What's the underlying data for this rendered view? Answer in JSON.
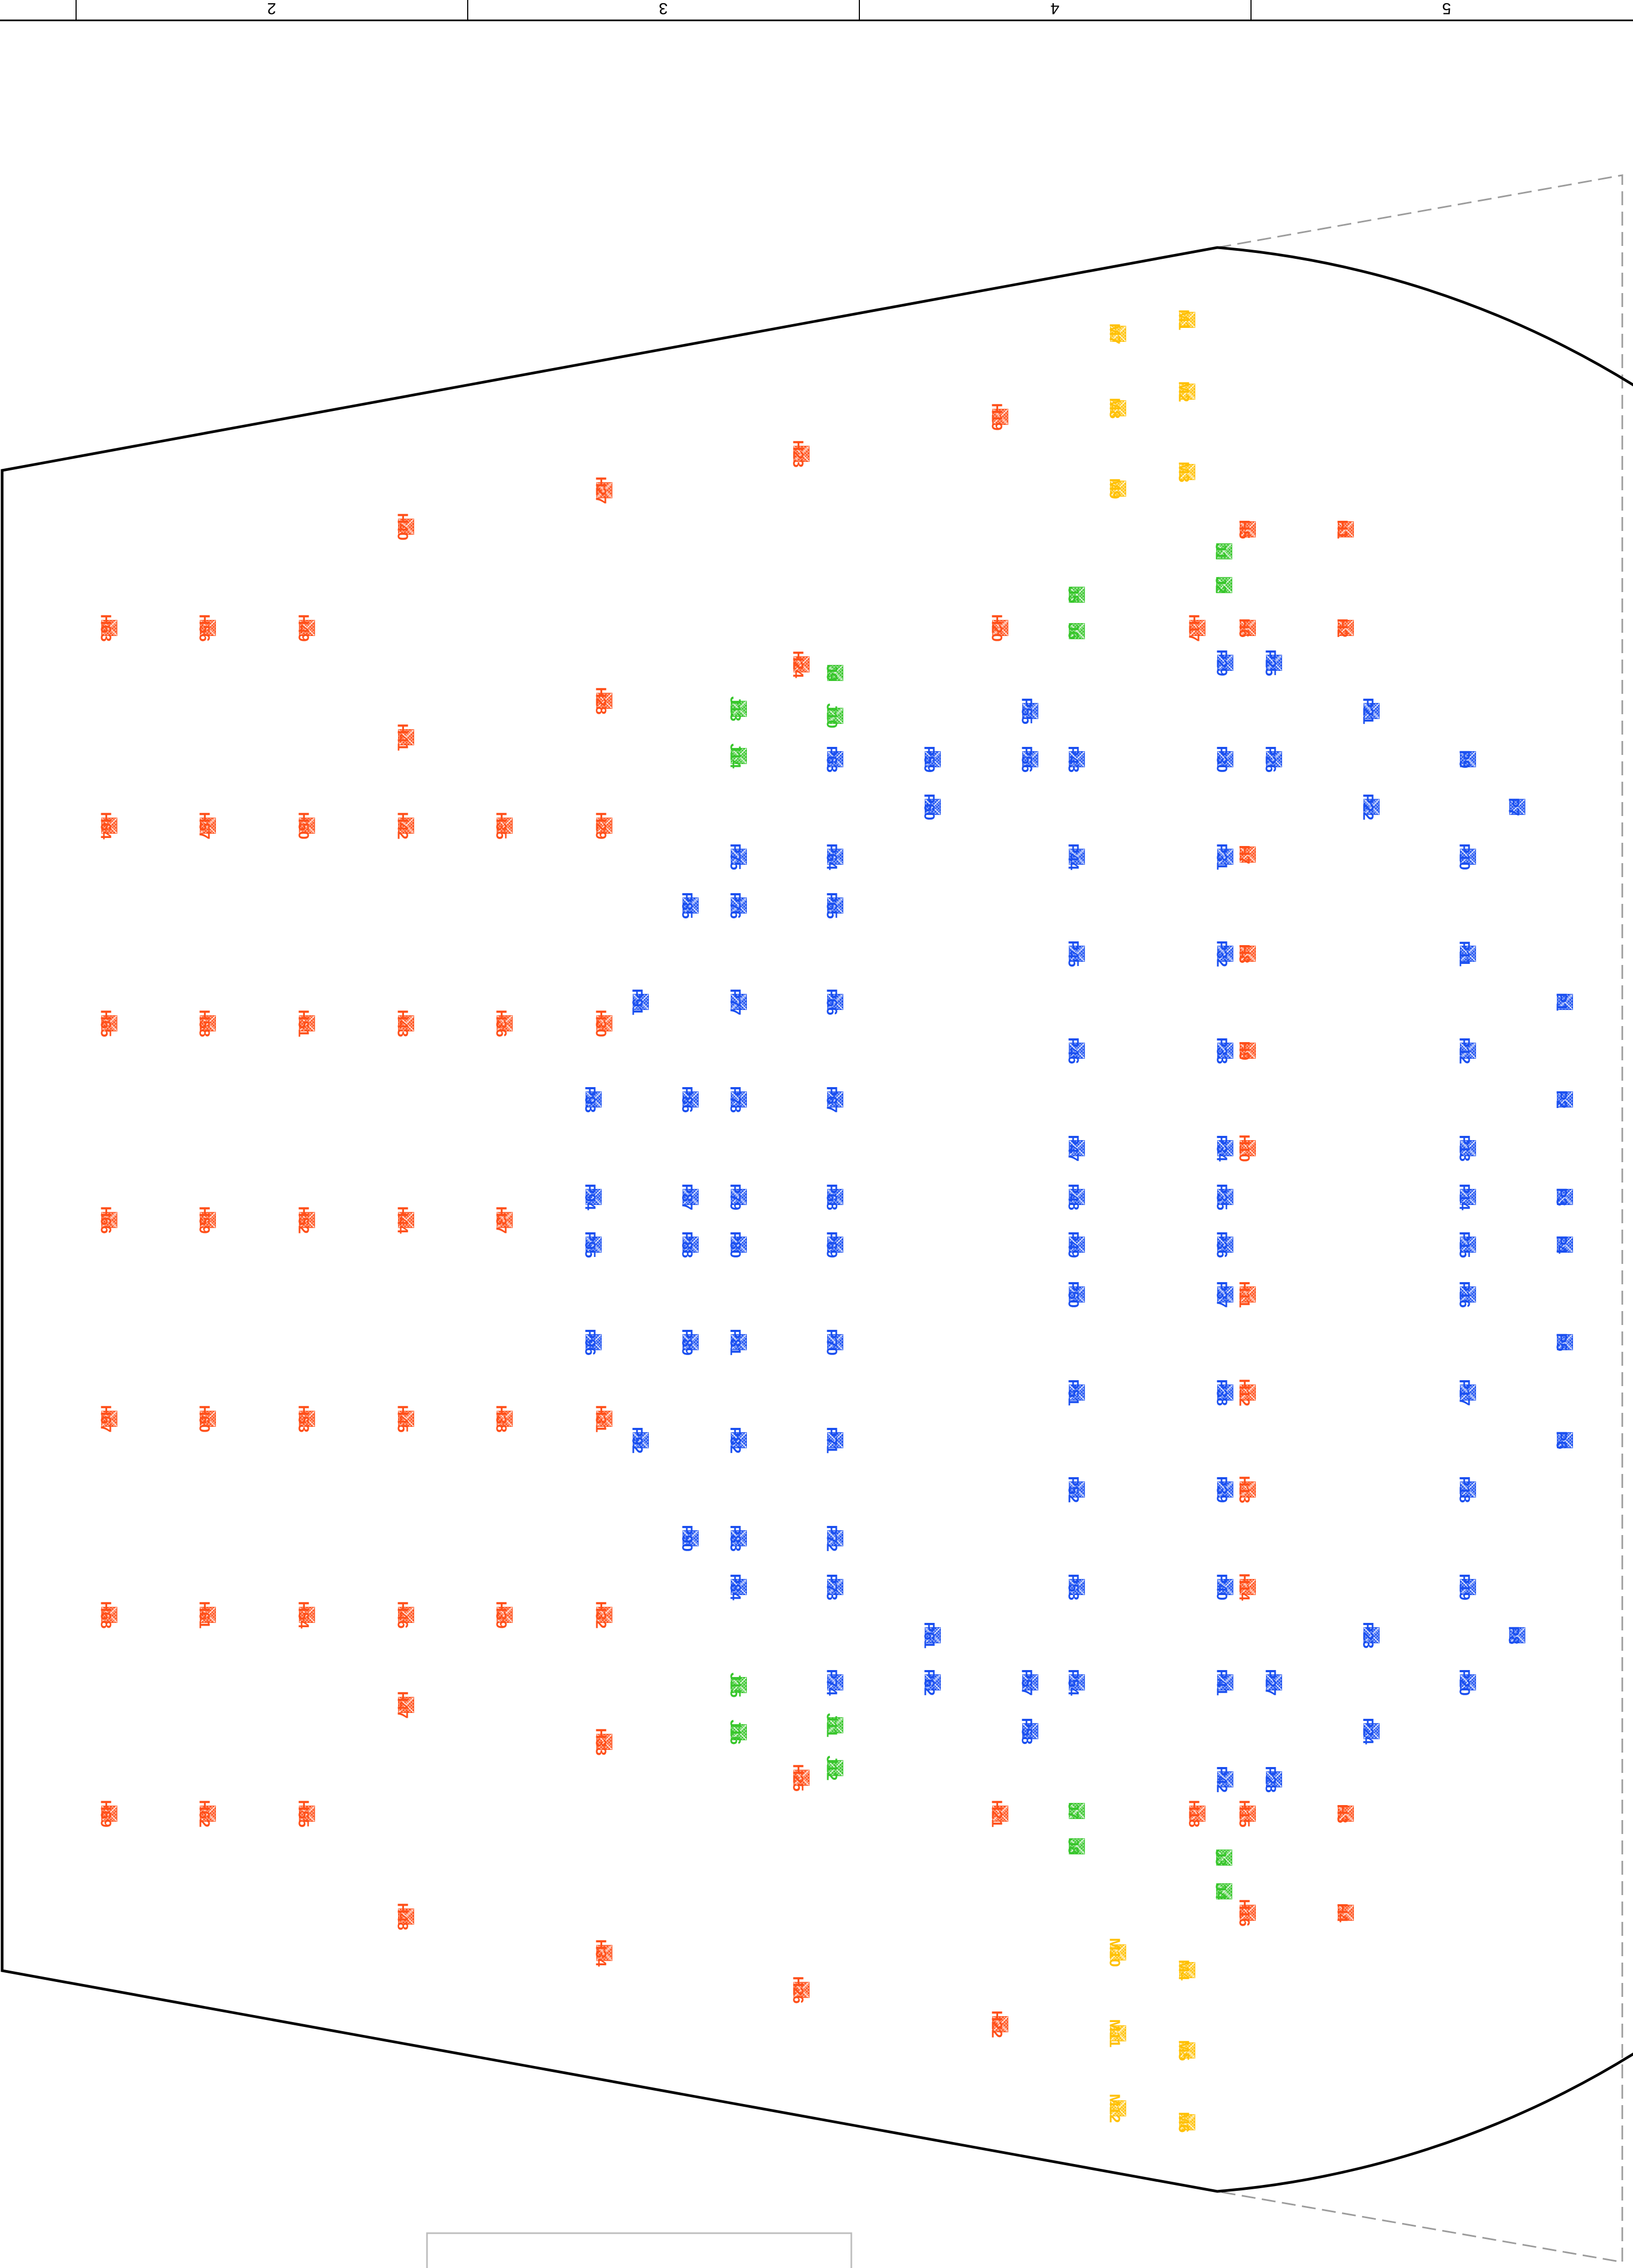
{
  "sheet": {
    "column_numbers": [
      "2",
      "3",
      "4",
      "5"
    ]
  },
  "legend": {
    "title_block_text": ""
  },
  "colors": {
    "H": "#ff4f19",
    "P": "#1a4ff0",
    "J": "#37c62b",
    "M": "#ffc000",
    "outline": "#000000",
    "guide": "#9c9c9c"
  },
  "units": [
    {
      "id": "M1",
      "t": "M"
    },
    {
      "id": "M2",
      "t": "M"
    },
    {
      "id": "M3",
      "t": "M"
    },
    {
      "id": "M4",
      "t": "M"
    },
    {
      "id": "M5",
      "t": "M"
    },
    {
      "id": "M6",
      "t": "M"
    },
    {
      "id": "M7",
      "t": "M"
    },
    {
      "id": "M8",
      "t": "M"
    },
    {
      "id": "M9",
      "t": "M"
    },
    {
      "id": "M10",
      "t": "M"
    },
    {
      "id": "M11",
      "t": "M"
    },
    {
      "id": "M12",
      "t": "M"
    },
    {
      "id": "J1",
      "t": "J"
    },
    {
      "id": "J2",
      "t": "J"
    },
    {
      "id": "J3",
      "t": "J"
    },
    {
      "id": "J4",
      "t": "J"
    },
    {
      "id": "J5",
      "t": "J"
    },
    {
      "id": "J6",
      "t": "J"
    },
    {
      "id": "J7",
      "t": "J"
    },
    {
      "id": "J8",
      "t": "J"
    },
    {
      "id": "J9",
      "t": "J"
    },
    {
      "id": "J10",
      "t": "J"
    },
    {
      "id": "J11",
      "t": "J"
    },
    {
      "id": "J12",
      "t": "J"
    },
    {
      "id": "J13",
      "t": "J"
    },
    {
      "id": "J14",
      "t": "J"
    },
    {
      "id": "J15",
      "t": "J"
    },
    {
      "id": "J16",
      "t": "J"
    },
    {
      "id": "H1",
      "t": "H"
    },
    {
      "id": "H2",
      "t": "H"
    },
    {
      "id": "H3",
      "t": "H"
    },
    {
      "id": "H4",
      "t": "H"
    },
    {
      "id": "H5",
      "t": "H"
    },
    {
      "id": "H6",
      "t": "H"
    },
    {
      "id": "H7",
      "t": "H"
    },
    {
      "id": "H8",
      "t": "H"
    },
    {
      "id": "H9",
      "t": "H"
    },
    {
      "id": "H10",
      "t": "H"
    },
    {
      "id": "H11",
      "t": "H"
    },
    {
      "id": "H12",
      "t": "H"
    },
    {
      "id": "H13",
      "t": "H"
    },
    {
      "id": "H14",
      "t": "H"
    },
    {
      "id": "H15",
      "t": "H"
    },
    {
      "id": "H16",
      "t": "H"
    },
    {
      "id": "H17",
      "t": "H"
    },
    {
      "id": "H18",
      "t": "H"
    },
    {
      "id": "H19",
      "t": "H"
    },
    {
      "id": "H20",
      "t": "H"
    },
    {
      "id": "H21",
      "t": "H"
    },
    {
      "id": "H22",
      "t": "H"
    },
    {
      "id": "H23",
      "t": "H"
    },
    {
      "id": "H24",
      "t": "H"
    },
    {
      "id": "H25",
      "t": "H"
    },
    {
      "id": "H26",
      "t": "H"
    },
    {
      "id": "H27",
      "t": "H"
    },
    {
      "id": "H28",
      "t": "H"
    },
    {
      "id": "H29",
      "t": "H"
    },
    {
      "id": "H30",
      "t": "H"
    },
    {
      "id": "H31",
      "t": "H"
    },
    {
      "id": "H32",
      "t": "H"
    },
    {
      "id": "H33",
      "t": "H"
    },
    {
      "id": "H34",
      "t": "H"
    },
    {
      "id": "H35",
      "t": "H"
    },
    {
      "id": "H36",
      "t": "H"
    },
    {
      "id": "H37",
      "t": "H"
    },
    {
      "id": "H38",
      "t": "H"
    },
    {
      "id": "H39",
      "t": "H"
    },
    {
      "id": "H40",
      "t": "H"
    },
    {
      "id": "H41",
      "t": "H"
    },
    {
      "id": "H42",
      "t": "H"
    },
    {
      "id": "H43",
      "t": "H"
    },
    {
      "id": "H44",
      "t": "H"
    },
    {
      "id": "H45",
      "t": "H"
    },
    {
      "id": "H46",
      "t": "H"
    },
    {
      "id": "H47",
      "t": "H"
    },
    {
      "id": "H48",
      "t": "H"
    },
    {
      "id": "H49",
      "t": "H"
    },
    {
      "id": "H50",
      "t": "H"
    },
    {
      "id": "H51",
      "t": "H"
    },
    {
      "id": "H52",
      "t": "H"
    },
    {
      "id": "H53",
      "t": "H"
    },
    {
      "id": "H54",
      "t": "H"
    },
    {
      "id": "H55",
      "t": "H"
    },
    {
      "id": "H56",
      "t": "H"
    },
    {
      "id": "H57",
      "t": "H"
    },
    {
      "id": "H58",
      "t": "H"
    },
    {
      "id": "H59",
      "t": "H"
    },
    {
      "id": "H60",
      "t": "H"
    },
    {
      "id": "H61",
      "t": "H"
    },
    {
      "id": "H62",
      "t": "H"
    },
    {
      "id": "H63",
      "t": "H"
    },
    {
      "id": "H64",
      "t": "H"
    },
    {
      "id": "H65",
      "t": "H"
    },
    {
      "id": "H66",
      "t": "H"
    },
    {
      "id": "H67",
      "t": "H"
    },
    {
      "id": "H68",
      "t": "H"
    },
    {
      "id": "H69",
      "t": "H"
    },
    {
      "id": "P1",
      "t": "P"
    },
    {
      "id": "P2",
      "t": "P"
    },
    {
      "id": "P3",
      "t": "P"
    },
    {
      "id": "P4",
      "t": "P"
    },
    {
      "id": "P5",
      "t": "P"
    },
    {
      "id": "P6",
      "t": "P"
    },
    {
      "id": "P7",
      "t": "P"
    },
    {
      "id": "P8",
      "t": "P"
    },
    {
      "id": "P9",
      "t": "P"
    },
    {
      "id": "P10",
      "t": "P"
    },
    {
      "id": "P11",
      "t": "P"
    },
    {
      "id": "P12",
      "t": "P"
    },
    {
      "id": "P13",
      "t": "P"
    },
    {
      "id": "P14",
      "t": "P"
    },
    {
      "id": "P15",
      "t": "P"
    },
    {
      "id": "P16",
      "t": "P"
    },
    {
      "id": "P17",
      "t": "P"
    },
    {
      "id": "P18",
      "t": "P"
    },
    {
      "id": "P19",
      "t": "P"
    },
    {
      "id": "P20",
      "t": "P"
    },
    {
      "id": "P21",
      "t": "P"
    },
    {
      "id": "P22",
      "t": "P"
    },
    {
      "id": "P23",
      "t": "P"
    },
    {
      "id": "P24",
      "t": "P"
    },
    {
      "id": "P25",
      "t": "P"
    },
    {
      "id": "P26",
      "t": "P"
    },
    {
      "id": "P27",
      "t": "P"
    },
    {
      "id": "P28",
      "t": "P"
    },
    {
      "id": "P29",
      "t": "P"
    },
    {
      "id": "P30",
      "t": "P"
    },
    {
      "id": "P31",
      "t": "P"
    },
    {
      "id": "P32",
      "t": "P"
    },
    {
      "id": "P33",
      "t": "P"
    },
    {
      "id": "P34",
      "t": "P"
    },
    {
      "id": "P35",
      "t": "P"
    },
    {
      "id": "P36",
      "t": "P"
    },
    {
      "id": "P37",
      "t": "P"
    },
    {
      "id": "P38",
      "t": "P"
    },
    {
      "id": "P39",
      "t": "P"
    },
    {
      "id": "P40",
      "t": "P"
    },
    {
      "id": "P41",
      "t": "P"
    },
    {
      "id": "P42",
      "t": "P"
    },
    {
      "id": "P43",
      "t": "P"
    },
    {
      "id": "P44",
      "t": "P"
    },
    {
      "id": "P45",
      "t": "P"
    },
    {
      "id": "P46",
      "t": "P"
    },
    {
      "id": "P47",
      "t": "P"
    },
    {
      "id": "P48",
      "t": "P"
    },
    {
      "id": "P49",
      "t": "P"
    },
    {
      "id": "P50",
      "t": "P"
    },
    {
      "id": "P51",
      "t": "P"
    },
    {
      "id": "P52",
      "t": "P"
    },
    {
      "id": "P53",
      "t": "P"
    },
    {
      "id": "P54",
      "t": "P"
    },
    {
      "id": "P55",
      "t": "P"
    },
    {
      "id": "P56",
      "t": "P"
    },
    {
      "id": "P57",
      "t": "P"
    },
    {
      "id": "P58",
      "t": "P"
    },
    {
      "id": "P59",
      "t": "P"
    },
    {
      "id": "P60",
      "t": "P"
    },
    {
      "id": "P61",
      "t": "P"
    },
    {
      "id": "P62",
      "t": "P"
    },
    {
      "id": "P63",
      "t": "P"
    },
    {
      "id": "P64",
      "t": "P"
    },
    {
      "id": "P65",
      "t": "P"
    },
    {
      "id": "P66",
      "t": "P"
    },
    {
      "id": "P67",
      "t": "P"
    },
    {
      "id": "P68",
      "t": "P"
    },
    {
      "id": "P69",
      "t": "P"
    },
    {
      "id": "P70",
      "t": "P"
    },
    {
      "id": "P71",
      "t": "P"
    },
    {
      "id": "P72",
      "t": "P"
    },
    {
      "id": "P73",
      "t": "P"
    },
    {
      "id": "P74",
      "t": "P"
    },
    {
      "id": "P75",
      "t": "P"
    },
    {
      "id": "P76",
      "t": "P"
    },
    {
      "id": "P77",
      "t": "P"
    },
    {
      "id": "P78",
      "t": "P"
    },
    {
      "id": "P79",
      "t": "P"
    },
    {
      "id": "P80",
      "t": "P"
    },
    {
      "id": "P81",
      "t": "P"
    },
    {
      "id": "P82",
      "t": "P"
    },
    {
      "id": "P83",
      "t": "P"
    },
    {
      "id": "P84",
      "t": "P"
    },
    {
      "id": "P85",
      "t": "P"
    },
    {
      "id": "P86",
      "t": "P"
    },
    {
      "id": "P87",
      "t": "P"
    },
    {
      "id": "P88",
      "t": "P"
    },
    {
      "id": "P89",
      "t": "P"
    },
    {
      "id": "P90",
      "t": "P"
    },
    {
      "id": "P91",
      "t": "P"
    },
    {
      "id": "P92",
      "t": "P"
    },
    {
      "id": "P93",
      "t": "P"
    },
    {
      "id": "P94",
      "t": "P"
    },
    {
      "id": "P95",
      "t": "P"
    },
    {
      "id": "P96",
      "t": "P"
    }
  ]
}
